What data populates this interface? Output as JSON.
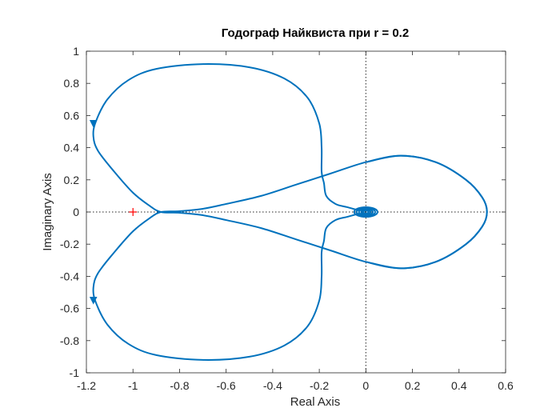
{
  "chart_data": {
    "type": "line",
    "title": "Годограф Найквиста при r = 0.2",
    "xlabel": "Real Axis",
    "ylabel": "Imaginary Axis",
    "xlim": [
      -1.2,
      0.6
    ],
    "ylim": [
      -1,
      1
    ],
    "x_ticks": [
      "-1.2",
      "-1",
      "-0.8",
      "-0.6",
      "-0.4",
      "-0.2",
      "0",
      "0.2",
      "0.4",
      "0.6"
    ],
    "y_ticks": [
      "1",
      "0.8",
      "0.6",
      "0.4",
      "0.2",
      "0",
      "-0.2",
      "-0.4",
      "-0.6",
      "-0.8",
      "-1"
    ],
    "grid": false,
    "zero_lines": "dotted",
    "critical_point": {
      "x": -1,
      "y": 0,
      "marker": "+",
      "color": "#ff0000"
    },
    "series": [
      {
        "color": "#0072bd",
        "points": [
          [
            0.0,
            0.31
          ],
          [
            0.15,
            0.35
          ],
          [
            0.3,
            0.31
          ],
          [
            0.43,
            0.2
          ],
          [
            0.5,
            0.09
          ],
          [
            0.52,
            0.0
          ],
          [
            0.5,
            -0.09
          ],
          [
            0.43,
            -0.2
          ],
          [
            0.3,
            -0.31
          ],
          [
            0.15,
            -0.35
          ],
          [
            0.0,
            -0.31
          ],
          [
            -0.15,
            -0.24
          ],
          [
            -0.3,
            -0.17
          ],
          [
            -0.45,
            -0.1
          ],
          [
            -0.6,
            -0.05
          ],
          [
            -0.7,
            -0.02
          ],
          [
            -0.8,
            -0.005
          ],
          [
            -0.88,
            0.0
          ],
          [
            -0.93,
            0.04
          ],
          [
            -1.0,
            0.12
          ],
          [
            -1.08,
            0.25
          ],
          [
            -1.15,
            0.38
          ],
          [
            -1.17,
            0.47
          ],
          [
            -1.16,
            0.56
          ],
          [
            -1.11,
            0.7
          ],
          [
            -1.02,
            0.82
          ],
          [
            -0.9,
            0.89
          ],
          [
            -0.7,
            0.92
          ],
          [
            -0.5,
            0.9
          ],
          [
            -0.35,
            0.83
          ],
          [
            -0.25,
            0.71
          ],
          [
            -0.2,
            0.55
          ],
          [
            -0.19,
            0.4
          ],
          [
            -0.19,
            0.25
          ],
          [
            -0.18,
            0.18
          ],
          [
            -0.17,
            0.1
          ],
          [
            -0.13,
            0.05
          ],
          [
            -0.08,
            0.03
          ],
          [
            -0.03,
            0.01
          ]
        ]
      },
      {
        "color": "#0072bd",
        "points": [
          [
            0.0,
            -0.31
          ],
          [
            0.15,
            -0.35
          ],
          [
            0.3,
            -0.31
          ],
          [
            0.43,
            -0.2
          ],
          [
            0.5,
            -0.09
          ],
          [
            0.52,
            0.0
          ],
          [
            0.5,
            0.09
          ],
          [
            0.43,
            0.2
          ],
          [
            0.3,
            0.31
          ],
          [
            0.15,
            0.35
          ],
          [
            0.0,
            0.31
          ],
          [
            -0.15,
            0.24
          ],
          [
            -0.3,
            0.17
          ],
          [
            -0.45,
            0.1
          ],
          [
            -0.6,
            0.05
          ],
          [
            -0.7,
            0.02
          ],
          [
            -0.8,
            0.005
          ],
          [
            -0.88,
            0.0
          ],
          [
            -0.93,
            -0.04
          ],
          [
            -1.0,
            -0.12
          ],
          [
            -1.08,
            -0.25
          ],
          [
            -1.15,
            -0.38
          ],
          [
            -1.17,
            -0.47
          ],
          [
            -1.16,
            -0.56
          ],
          [
            -1.11,
            -0.7
          ],
          [
            -1.02,
            -0.82
          ],
          [
            -0.9,
            -0.89
          ],
          [
            -0.7,
            -0.92
          ],
          [
            -0.5,
            -0.9
          ],
          [
            -0.35,
            -0.83
          ],
          [
            -0.25,
            -0.71
          ],
          [
            -0.2,
            -0.55
          ],
          [
            -0.19,
            -0.4
          ],
          [
            -0.19,
            -0.25
          ],
          [
            -0.18,
            -0.18
          ],
          [
            -0.17,
            -0.1
          ],
          [
            -0.13,
            -0.05
          ],
          [
            -0.08,
            -0.03
          ],
          [
            -0.03,
            -0.01
          ]
        ]
      }
    ],
    "inner_spiral": {
      "center": {
        "x": 0.0,
        "y": 0.0
      },
      "radii_x": [
        0.05,
        0.04,
        0.03,
        0.02,
        0.012
      ],
      "radii_y": [
        0.03,
        0.025,
        0.018,
        0.013,
        0.008
      ],
      "color": "#0072bd"
    },
    "direction_arrows": [
      {
        "x": -1.17,
        "y": 0.55,
        "direction": "down"
      },
      {
        "x": -1.17,
        "y": -0.55,
        "direction": "down"
      }
    ]
  }
}
